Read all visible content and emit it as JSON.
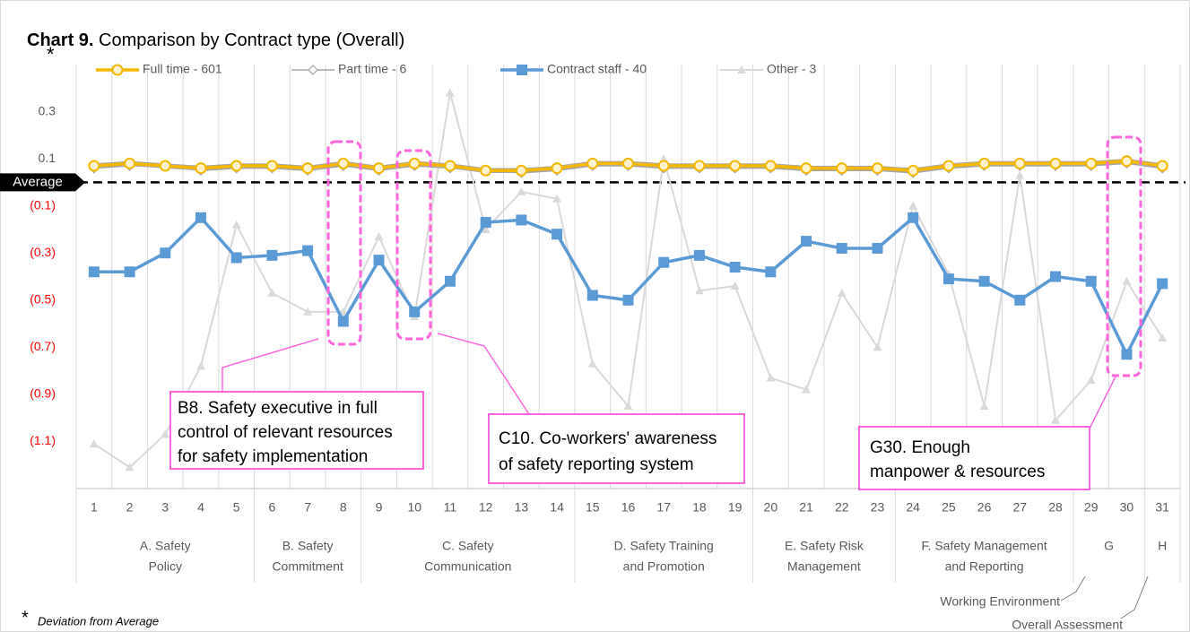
{
  "chart_data": {
    "type": "line",
    "title_prefix": "Chart 9.",
    "title": "Comparison by Contract type (Overall)",
    "axis_marker": "*",
    "footnote_marker": "*",
    "footnote": "Deviation from Average",
    "categories": [
      "1",
      "2",
      "3",
      "4",
      "5",
      "6",
      "7",
      "8",
      "9",
      "10",
      "11",
      "12",
      "13",
      "14",
      "15",
      "16",
      "17",
      "18",
      "19",
      "20",
      "21",
      "22",
      "23",
      "24",
      "25",
      "26",
      "27",
      "28",
      "29",
      "30",
      "31"
    ],
    "groups": [
      {
        "lines": [
          "A. Safety",
          "Policy"
        ],
        "span": 5
      },
      {
        "lines": [
          "B. Safety",
          "Commitment"
        ],
        "span": 3
      },
      {
        "lines": [
          "C. Safety",
          "Communication"
        ],
        "span": 6
      },
      {
        "lines": [
          "D. Safety Training",
          "and Promotion"
        ],
        "span": 5
      },
      {
        "lines": [
          "E. Safety Risk",
          "Management"
        ],
        "span": 4
      },
      {
        "lines": [
          "F. Safety Management",
          "and Reporting"
        ],
        "span": 5
      },
      {
        "lines": [
          "G"
        ],
        "span": 2
      },
      {
        "lines": [
          "H"
        ],
        "span": 1
      }
    ],
    "group_notes": [
      "Working Environment",
      "Overall Assessment"
    ],
    "series": [
      {
        "name": "Full time - 601",
        "color": "#f5b800",
        "marker": "circle",
        "values": [
          0.07,
          0.08,
          0.07,
          0.06,
          0.07,
          0.07,
          0.06,
          0.08,
          0.06,
          0.08,
          0.07,
          0.05,
          0.05,
          0.06,
          0.08,
          0.08,
          0.07,
          0.07,
          0.07,
          0.07,
          0.06,
          0.06,
          0.06,
          0.05,
          0.07,
          0.08,
          0.08,
          0.08,
          0.08,
          0.09,
          0.07
        ]
      },
      {
        "name": "Part time - 6",
        "color": "#a6a6a6",
        "marker": "diamond",
        "values": [
          0.06,
          0.07,
          0.07,
          0.05,
          0.06,
          0.06,
          0.05,
          0.07,
          0.05,
          0.07,
          0.06,
          0.05,
          0.04,
          0.05,
          0.07,
          0.07,
          0.06,
          0.06,
          0.06,
          0.06,
          0.05,
          0.05,
          0.05,
          0.04,
          0.06,
          0.07,
          0.07,
          0.07,
          0.07,
          0.08,
          0.06
        ]
      },
      {
        "name": "Contract staff - 40",
        "color": "#5b9bd5",
        "marker": "square",
        "values": [
          -0.38,
          -0.38,
          -0.3,
          -0.15,
          -0.32,
          -0.31,
          -0.29,
          -0.59,
          -0.33,
          -0.55,
          -0.42,
          -0.17,
          -0.16,
          -0.22,
          -0.48,
          -0.5,
          -0.34,
          -0.31,
          -0.36,
          -0.38,
          -0.25,
          -0.28,
          -0.28,
          -0.15,
          -0.41,
          -0.42,
          -0.5,
          -0.4,
          -0.42,
          -0.73,
          -0.43
        ]
      },
      {
        "name": "Other - 3",
        "color": "#d9d9d9",
        "marker": "triangle",
        "values": [
          -1.11,
          -1.21,
          -1.07,
          -0.78,
          -0.18,
          -0.47,
          -0.55,
          -0.55,
          -0.23,
          -0.57,
          0.38,
          -0.2,
          -0.04,
          -0.07,
          -0.77,
          -0.95,
          0.1,
          -0.46,
          -0.44,
          -0.83,
          -0.88,
          -0.47,
          -0.7,
          -0.1,
          -0.39,
          -0.95,
          0.03,
          -1.01,
          -0.84,
          -0.42,
          -0.66
        ]
      }
    ],
    "ylim": [
      -1.3,
      0.5
    ],
    "yticks": [
      0.3,
      0.1,
      {
        "value": -0.1,
        "label": "(0.1)"
      },
      {
        "value": -0.3,
        "label": "(0.3)"
      },
      {
        "value": -0.5,
        "label": "(0.5)"
      },
      {
        "value": -0.7,
        "label": "(0.7)"
      },
      {
        "value": -0.9,
        "label": "(0.9)"
      },
      {
        "value": -1.1,
        "label": "(1.1)"
      }
    ],
    "negative_label_color": "#ff0000",
    "reference_line": {
      "value": 0,
      "label": "Average"
    },
    "grid": "vertical",
    "legend": "top",
    "annotations": [
      {
        "lines": [
          "B8. Safety executive in full",
          "control of relevant resources",
          "for safety implementation"
        ]
      },
      {
        "lines": [
          "C10. Co-workers' awareness",
          "of safety reporting system"
        ]
      },
      {
        "lines": [
          "G30. Enough",
          "manpower & resources"
        ]
      }
    ]
  }
}
